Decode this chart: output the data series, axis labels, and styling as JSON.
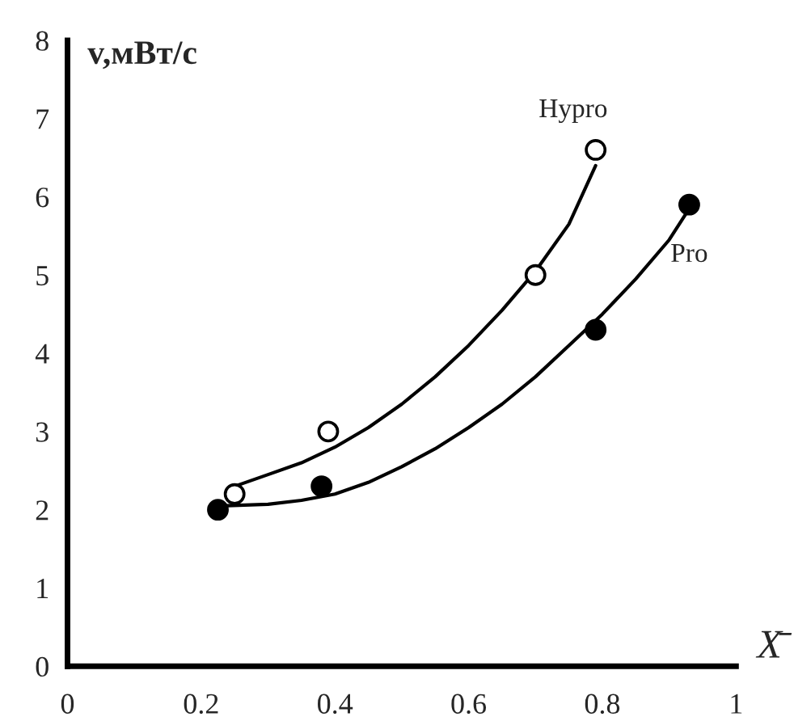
{
  "chart_data": {
    "type": "scatter",
    "ylabel": "v,мВт/с",
    "xlabel": "X̄",
    "xlim": [
      0,
      1
    ],
    "xticks": [
      0,
      0.2,
      0.4,
      0.6,
      0.8,
      1
    ],
    "ylim": [
      0,
      8
    ],
    "yticks": [
      0,
      1,
      2,
      3,
      4,
      5,
      6,
      7,
      8
    ],
    "grid": false,
    "legend": false,
    "series": [
      {
        "name": "Hypro",
        "marker": "circle",
        "color": "#ffffff",
        "x": [
          0.25,
          0.39,
          0.7,
          0.79
        ],
        "values": [
          2.2,
          3.0,
          5.0,
          6.6
        ]
      },
      {
        "name": "Pro",
        "marker": "circle",
        "color": "#000000",
        "x": [
          0.225,
          0.38,
          0.79,
          0.93
        ],
        "values": [
          2.0,
          2.3,
          4.3,
          5.9
        ]
      },
      {
        "type": "line",
        "marker": "none",
        "color": "#000000",
        "x": [
          0.25,
          0.3,
          0.35,
          0.4,
          0.45,
          0.5,
          0.55,
          0.6,
          0.65,
          0.7,
          0.75,
          0.79
        ],
        "values": [
          2.3,
          2.45,
          2.6,
          2.8,
          3.05,
          3.35,
          3.7,
          4.1,
          4.55,
          5.05,
          5.65,
          6.4
        ]
      },
      {
        "type": "line",
        "marker": "none",
        "color": "#000000",
        "x": [
          0.23,
          0.3,
          0.35,
          0.4,
          0.45,
          0.5,
          0.55,
          0.6,
          0.65,
          0.7,
          0.75,
          0.8,
          0.85,
          0.9,
          0.93
        ],
        "values": [
          2.05,
          2.07,
          2.12,
          2.2,
          2.35,
          2.55,
          2.78,
          3.05,
          3.35,
          3.7,
          4.1,
          4.5,
          4.95,
          5.45,
          5.85
        ]
      }
    ]
  }
}
